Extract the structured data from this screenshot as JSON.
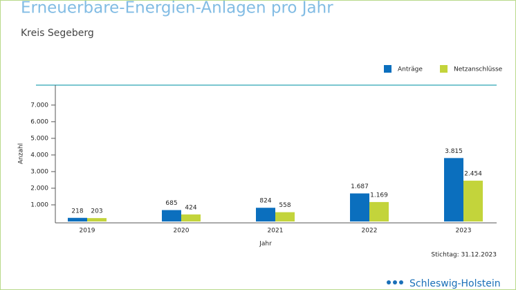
{
  "chart_data": {
    "type": "bar",
    "title": "Erneuerbare-Energien-Anlagen pro Jahr",
    "subtitle": "Kreis Segeberg",
    "x_label": "Jahr",
    "y_label": "Anzahl",
    "note": "Stichtag: 31.12.2023",
    "logo_text": "Schleswig-Holstein",
    "categories": [
      "2019",
      "2020",
      "2021",
      "2022",
      "2023"
    ],
    "series": [
      {
        "name": "Anträge",
        "color": "#0b6fbe",
        "values": [
          218,
          685,
          824,
          1687,
          3815
        ],
        "value_labels": [
          "218",
          "685",
          "824",
          "1.687",
          "3.815"
        ]
      },
      {
        "name": "Netzanschlüsse",
        "color": "#c3d43b",
        "values": [
          203,
          424,
          558,
          1169,
          2454
        ],
        "value_labels": [
          "203",
          "424",
          "558",
          "1.169",
          "2.454"
        ]
      }
    ],
    "ylim": [
      0,
      8200
    ],
    "yticks": [
      {
        "value": 1000,
        "label": "1.000"
      },
      {
        "value": 2000,
        "label": "2.000"
      },
      {
        "value": 3000,
        "label": "3.000"
      },
      {
        "value": 4000,
        "label": "4.000"
      },
      {
        "value": 5000,
        "label": "5.000"
      },
      {
        "value": 6000,
        "label": "6.000"
      },
      {
        "value": 7000,
        "label": "7.000"
      }
    ],
    "legend": "top-right"
  }
}
